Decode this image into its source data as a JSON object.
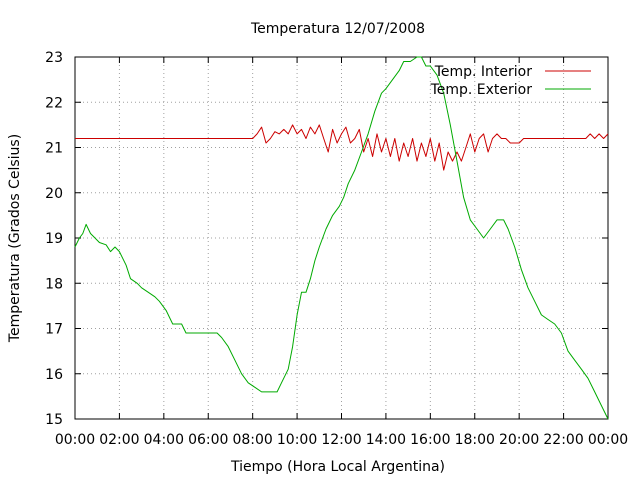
{
  "chart_data": {
    "type": "line",
    "title": "Temperatura 12/07/2008",
    "xlabel": "Tiempo (Hora Local Argentina)",
    "ylabel": "Temperatura (Grados Celsius)",
    "xlim": [
      0,
      24
    ],
    "ylim": [
      15,
      23
    ],
    "grid": true,
    "legend_position": "top-right",
    "x_ticks": [
      {
        "value": 0,
        "label": "00:00"
      },
      {
        "value": 2,
        "label": "02:00"
      },
      {
        "value": 4,
        "label": "04:00"
      },
      {
        "value": 6,
        "label": "06:00"
      },
      {
        "value": 8,
        "label": "08:00"
      },
      {
        "value": 10,
        "label": "10:00"
      },
      {
        "value": 12,
        "label": "12:00"
      },
      {
        "value": 14,
        "label": "14:00"
      },
      {
        "value": 16,
        "label": "16:00"
      },
      {
        "value": 18,
        "label": "18:00"
      },
      {
        "value": 20,
        "label": "20:00"
      },
      {
        "value": 22,
        "label": "22:00"
      },
      {
        "value": 24,
        "label": "00:00"
      }
    ],
    "y_ticks": [
      {
        "value": 15,
        "label": "15"
      },
      {
        "value": 16,
        "label": "16"
      },
      {
        "value": 17,
        "label": "17"
      },
      {
        "value": 18,
        "label": "18"
      },
      {
        "value": 19,
        "label": "19"
      },
      {
        "value": 20,
        "label": "20"
      },
      {
        "value": 21,
        "label": "21"
      },
      {
        "value": 22,
        "label": "22"
      },
      {
        "value": 23,
        "label": "23"
      }
    ],
    "series": [
      {
        "name": "Temp. Interior",
        "color": "#cc0000",
        "points": [
          [
            0,
            21.2
          ],
          [
            8.0,
            21.2
          ],
          [
            8.2,
            21.3
          ],
          [
            8.4,
            21.45
          ],
          [
            8.6,
            21.1
          ],
          [
            8.8,
            21.2
          ],
          [
            9.0,
            21.35
          ],
          [
            9.2,
            21.3
          ],
          [
            9.4,
            21.4
          ],
          [
            9.6,
            21.3
          ],
          [
            9.8,
            21.5
          ],
          [
            10.0,
            21.3
          ],
          [
            10.2,
            21.4
          ],
          [
            10.4,
            21.2
          ],
          [
            10.6,
            21.45
          ],
          [
            10.8,
            21.3
          ],
          [
            11.0,
            21.5
          ],
          [
            11.2,
            21.2
          ],
          [
            11.4,
            20.9
          ],
          [
            11.6,
            21.4
          ],
          [
            11.8,
            21.1
          ],
          [
            12.0,
            21.3
          ],
          [
            12.2,
            21.45
          ],
          [
            12.4,
            21.1
          ],
          [
            12.6,
            21.2
          ],
          [
            12.8,
            21.4
          ],
          [
            13.0,
            20.9
          ],
          [
            13.2,
            21.2
          ],
          [
            13.4,
            20.8
          ],
          [
            13.6,
            21.3
          ],
          [
            13.8,
            20.9
          ],
          [
            14.0,
            21.2
          ],
          [
            14.2,
            20.8
          ],
          [
            14.4,
            21.2
          ],
          [
            14.6,
            20.7
          ],
          [
            14.8,
            21.1
          ],
          [
            15.0,
            20.8
          ],
          [
            15.2,
            21.2
          ],
          [
            15.4,
            20.7
          ],
          [
            15.6,
            21.1
          ],
          [
            15.8,
            20.8
          ],
          [
            16.0,
            21.2
          ],
          [
            16.2,
            20.7
          ],
          [
            16.4,
            21.1
          ],
          [
            16.6,
            20.5
          ],
          [
            16.8,
            20.9
          ],
          [
            17.0,
            20.7
          ],
          [
            17.2,
            20.9
          ],
          [
            17.4,
            20.7
          ],
          [
            17.6,
            21.0
          ],
          [
            17.8,
            21.3
          ],
          [
            18.0,
            20.9
          ],
          [
            18.2,
            21.2
          ],
          [
            18.4,
            21.3
          ],
          [
            18.6,
            20.9
          ],
          [
            18.8,
            21.2
          ],
          [
            19.0,
            21.3
          ],
          [
            19.2,
            21.2
          ],
          [
            19.4,
            21.2
          ],
          [
            19.6,
            21.1
          ],
          [
            20.0,
            21.1
          ],
          [
            20.2,
            21.2
          ],
          [
            23.0,
            21.2
          ],
          [
            23.2,
            21.3
          ],
          [
            23.4,
            21.2
          ],
          [
            23.6,
            21.3
          ],
          [
            23.8,
            21.2
          ],
          [
            24.0,
            21.3
          ]
        ]
      },
      {
        "name": "Temp. Exterior",
        "color": "#00aa00",
        "points": [
          [
            0.0,
            18.8
          ],
          [
            0.2,
            19.0
          ],
          [
            0.35,
            19.1
          ],
          [
            0.5,
            19.3
          ],
          [
            0.7,
            19.1
          ],
          [
            0.9,
            19.0
          ],
          [
            1.1,
            18.9
          ],
          [
            1.4,
            18.85
          ],
          [
            1.6,
            18.7
          ],
          [
            1.8,
            18.8
          ],
          [
            2.0,
            18.7
          ],
          [
            2.3,
            18.4
          ],
          [
            2.5,
            18.1
          ],
          [
            2.8,
            18.0
          ],
          [
            3.0,
            17.9
          ],
          [
            3.3,
            17.8
          ],
          [
            3.6,
            17.7
          ],
          [
            3.8,
            17.6
          ],
          [
            4.1,
            17.4
          ],
          [
            4.4,
            17.1
          ],
          [
            4.8,
            17.1
          ],
          [
            5.0,
            16.9
          ],
          [
            5.5,
            16.9
          ],
          [
            6.0,
            16.9
          ],
          [
            6.4,
            16.9
          ],
          [
            6.6,
            16.8
          ],
          [
            6.9,
            16.6
          ],
          [
            7.2,
            16.3
          ],
          [
            7.5,
            16.0
          ],
          [
            7.8,
            15.8
          ],
          [
            8.1,
            15.7
          ],
          [
            8.4,
            15.6
          ],
          [
            8.8,
            15.6
          ],
          [
            9.1,
            15.6
          ],
          [
            9.3,
            15.8
          ],
          [
            9.6,
            16.1
          ],
          [
            9.8,
            16.6
          ],
          [
            10.0,
            17.3
          ],
          [
            10.2,
            17.8
          ],
          [
            10.4,
            17.8
          ],
          [
            10.6,
            18.1
          ],
          [
            10.8,
            18.5
          ],
          [
            11.0,
            18.8
          ],
          [
            11.3,
            19.2
          ],
          [
            11.6,
            19.5
          ],
          [
            11.9,
            19.7
          ],
          [
            12.1,
            19.9
          ],
          [
            12.3,
            20.2
          ],
          [
            12.6,
            20.5
          ],
          [
            12.9,
            20.9
          ],
          [
            13.2,
            21.3
          ],
          [
            13.5,
            21.8
          ],
          [
            13.8,
            22.2
          ],
          [
            14.0,
            22.3
          ],
          [
            14.3,
            22.5
          ],
          [
            14.6,
            22.7
          ],
          [
            14.8,
            22.9
          ],
          [
            15.1,
            22.9
          ],
          [
            15.4,
            23.0
          ],
          [
            15.6,
            23.0
          ],
          [
            15.8,
            22.8
          ],
          [
            16.0,
            22.8
          ],
          [
            16.3,
            22.6
          ],
          [
            16.6,
            22.2
          ],
          [
            16.9,
            21.5
          ],
          [
            17.2,
            20.7
          ],
          [
            17.5,
            19.9
          ],
          [
            17.8,
            19.4
          ],
          [
            18.1,
            19.2
          ],
          [
            18.4,
            19.0
          ],
          [
            18.7,
            19.2
          ],
          [
            19.0,
            19.4
          ],
          [
            19.3,
            19.4
          ],
          [
            19.5,
            19.2
          ],
          [
            19.8,
            18.8
          ],
          [
            20.1,
            18.3
          ],
          [
            20.4,
            17.9
          ],
          [
            20.7,
            17.6
          ],
          [
            21.0,
            17.3
          ],
          [
            21.3,
            17.2
          ],
          [
            21.6,
            17.1
          ],
          [
            21.9,
            16.9
          ],
          [
            22.2,
            16.5
          ],
          [
            22.5,
            16.3
          ],
          [
            22.8,
            16.1
          ],
          [
            23.1,
            15.9
          ],
          [
            23.4,
            15.6
          ],
          [
            23.7,
            15.3
          ],
          [
            24.0,
            15.0
          ]
        ]
      }
    ]
  }
}
